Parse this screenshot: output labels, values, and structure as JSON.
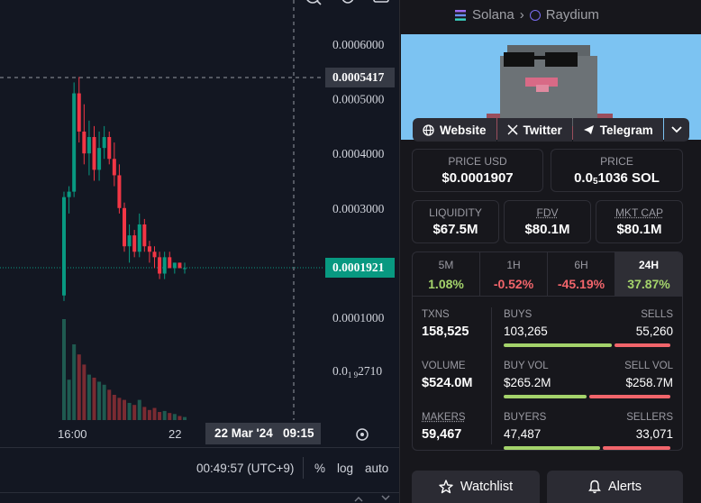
{
  "pair": {
    "chain": "Solana",
    "dex": "Raydium"
  },
  "socials": {
    "website": "Website",
    "twitter": "Twitter",
    "telegram": "Telegram"
  },
  "prices": {
    "price_usd_label": "PRICE USD",
    "price_usd": "$0.0001907",
    "price_label": "PRICE",
    "price_sol_lead": "0.0",
    "price_sol_sub": "5",
    "price_sol_tail": "1036 SOL"
  },
  "metrics": {
    "liquidity_label": "LIQUIDITY",
    "liquidity": "$67.5M",
    "fdv_label": "FDV",
    "fdv": "$80.1M",
    "mktcap_label": "MKT CAP",
    "mktcap": "$80.1M"
  },
  "timeframes": [
    {
      "label": "5M",
      "value": "1.08%"
    },
    {
      "label": "1H",
      "value": "-0.52%"
    },
    {
      "label": "6H",
      "value": "-45.19%"
    },
    {
      "label": "24H",
      "value": "37.87%"
    }
  ],
  "stats": {
    "txns_label": "TXNS",
    "txns": "158,525",
    "buys_label": "BUYS",
    "buys": "103,265",
    "sells_label": "SELLS",
    "sells": "55,260",
    "volume_label": "VOLUME",
    "volume": "$524.0M",
    "buy_vol_label": "BUY VOL",
    "buy_vol": "$265.2M",
    "sell_vol_label": "SELL VOL",
    "sell_vol": "$258.7M",
    "makers_label": "MAKERS",
    "makers": "59,467",
    "buyers_label": "BUYERS",
    "buyers": "47,487",
    "sellers_label": "SELLERS",
    "sellers": "33,071"
  },
  "actions": {
    "watchlist": "Watchlist",
    "alerts": "Alerts"
  },
  "chart": {
    "crosshair_price": "0.0005417",
    "current_price": "0.0001921",
    "crosshair_time": "22 Mar '24   09:15",
    "time_ticks": [
      "16:00",
      "22"
    ],
    "clock": "00:49:57 (UTC+9)",
    "percent_btn": "%",
    "log_btn": "log",
    "auto_btn": "auto",
    "price_ticks": [
      "0.0006000",
      "0.0005000",
      "0.0004000",
      "0.0003000",
      "0.0001000"
    ],
    "low_tick_lead": "0.0",
    "low_tick_sub": "1 9",
    "low_tick_tail": "2710"
  },
  "colors": {
    "up": "#089981",
    "down": "#f23645",
    "up_vol": "#1f5a50",
    "down_vol": "#7a2b32",
    "positive_text": "#a4d36b",
    "negative_text": "#f2656b"
  },
  "chart_data": {
    "type": "candlestick",
    "ylim": [
      5e-05,
      0.00064
    ],
    "candles": [
      [
        0.00014,
        0.00033,
        0.00013,
        0.00032
      ],
      [
        0.00032,
        0.00034,
        0.00029,
        0.00033
      ],
      [
        0.00033,
        0.00053,
        0.00032,
        0.00051
      ],
      [
        0.00051,
        0.00054,
        0.00042,
        0.00044
      ],
      [
        0.00044,
        0.00049,
        0.00038,
        0.0004
      ],
      [
        0.0004,
        0.00046,
        0.00036,
        0.00043
      ],
      [
        0.00043,
        0.00045,
        0.00035,
        0.00037
      ],
      [
        0.00037,
        0.00044,
        0.00035,
        0.00041
      ],
      [
        0.00041,
        0.00045,
        0.00039,
        0.00043
      ],
      [
        0.00043,
        0.00044,
        0.00038,
        0.00039
      ],
      [
        0.00039,
        0.00042,
        0.00034,
        0.00036
      ],
      [
        0.00036,
        0.00038,
        0.00029,
        0.0003
      ],
      [
        0.0003,
        0.00031,
        0.00022,
        0.00023
      ],
      [
        0.00023,
        0.00027,
        0.0002,
        0.00025
      ],
      [
        0.00025,
        0.00026,
        0.00021,
        0.00022
      ],
      [
        0.00022,
        0.00029,
        0.00021,
        0.00027
      ],
      [
        0.00027,
        0.00028,
        0.00022,
        0.00023
      ],
      [
        0.00023,
        0.00024,
        0.0002,
        0.00022
      ],
      [
        0.00022,
        0.00023,
        0.00019,
        0.00021
      ],
      [
        0.00021,
        0.00022,
        0.00017,
        0.00018
      ],
      [
        0.00018,
        0.00022,
        0.00017,
        0.00021
      ],
      [
        0.00021,
        0.00022,
        0.00019,
        0.00019
      ],
      [
        0.00019,
        0.0002,
        0.00018,
        0.0002
      ],
      [
        0.0002,
        0.0002,
        0.00019,
        0.00019
      ],
      [
        0.00019,
        0.0002,
        0.00018,
        0.00019
      ]
    ],
    "volumes": [
      1.0,
      0.4,
      0.75,
      0.65,
      0.55,
      0.45,
      0.42,
      0.38,
      0.35,
      0.3,
      0.25,
      0.22,
      0.2,
      0.17,
      0.15,
      0.2,
      0.13,
      0.1,
      0.12,
      0.08,
      0.09,
      0.07,
      0.06,
      0.04,
      0.03
    ]
  }
}
